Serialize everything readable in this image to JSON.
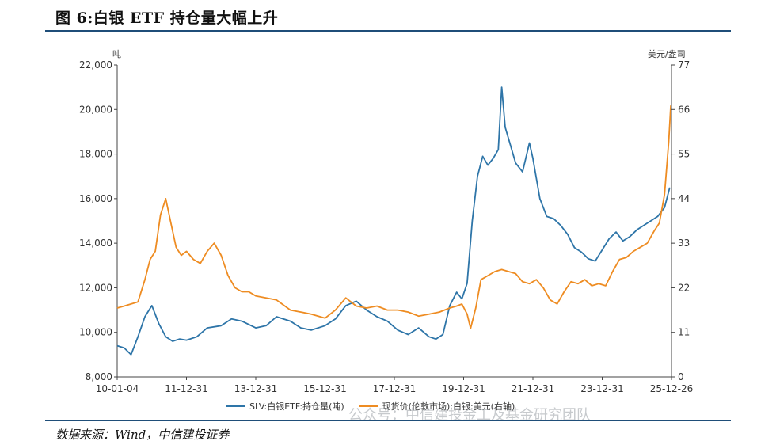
{
  "header": {
    "title": "图 6:白银 ETF 持仓量大幅上升"
  },
  "footer": {
    "source": "数据来源：Wind，中信建投证券"
  },
  "watermark": {
    "text": "公众号：中信建投金工及基金研究团队"
  },
  "chart_data": {
    "type": "line",
    "title": "图 6:白银 ETF 持仓量大幅上升",
    "ylabel_left": "吨",
    "ylabel_right": "美元/盎司",
    "ylim_left": [
      8000,
      22000
    ],
    "ylim_right": [
      0,
      77
    ],
    "yticks_left": [
      "22,000",
      "20,000",
      "18,000",
      "16,000",
      "14,000",
      "12,000",
      "10,000",
      "8,000"
    ],
    "yticks_right": [
      "77",
      "66",
      "55",
      "44",
      "33",
      "22",
      "11",
      "0"
    ],
    "xtick_labels": [
      "10-01-04",
      "11-12-31",
      "13-12-31",
      "15-12-31",
      "17-12-31",
      "19-12-31",
      "21-12-31",
      "23-12-31",
      "25-12-26"
    ],
    "xlim": [
      2010.0,
      2026.0
    ],
    "series": [
      {
        "name": "SLV:白银ETF:持仓量(吨)",
        "axis": "left",
        "color": "#2e75a8",
        "x": [
          2010.0,
          2010.2,
          2010.4,
          2010.6,
          2010.8,
          2011.0,
          2011.2,
          2011.4,
          2011.6,
          2011.8,
          2012.0,
          2012.3,
          2012.6,
          2013.0,
          2013.3,
          2013.6,
          2014.0,
          2014.3,
          2014.6,
          2015.0,
          2015.3,
          2015.6,
          2016.0,
          2016.3,
          2016.6,
          2016.9,
          2017.2,
          2017.5,
          2017.8,
          2018.1,
          2018.4,
          2018.7,
          2019.0,
          2019.2,
          2019.4,
          2019.6,
          2019.8,
          2019.95,
          2020.1,
          2020.25,
          2020.4,
          2020.55,
          2020.7,
          2020.85,
          2021.0,
          2021.1,
          2021.2,
          2021.35,
          2021.5,
          2021.7,
          2021.9,
          2022.0,
          2022.2,
          2022.4,
          2022.6,
          2022.8,
          2023.0,
          2023.2,
          2023.4,
          2023.6,
          2023.8,
          2024.0,
          2024.2,
          2024.4,
          2024.6,
          2024.8,
          2025.0,
          2025.2,
          2025.4,
          2025.6,
          2025.8,
          2025.95
        ],
        "values": [
          9400,
          9300,
          9000,
          9800,
          10700,
          11200,
          10400,
          9800,
          9600,
          9700,
          9650,
          9800,
          10200,
          10300,
          10600,
          10500,
          10200,
          10300,
          10700,
          10500,
          10200,
          10100,
          10300,
          10600,
          11200,
          11400,
          11000,
          10700,
          10500,
          10100,
          9900,
          10200,
          9800,
          9700,
          9900,
          11200,
          11800,
          11500,
          12200,
          15000,
          17000,
          17900,
          17500,
          17800,
          18200,
          21000,
          19200,
          18400,
          17600,
          17200,
          18500,
          17800,
          16000,
          15200,
          15100,
          14800,
          14400,
          13800,
          13600,
          13300,
          13200,
          13700,
          14200,
          14500,
          14100,
          14300,
          14600,
          14800,
          15000,
          15200,
          15600,
          16500
        ]
      },
      {
        "name": "现货价(伦敦市场):白银:美元(右轴)",
        "axis": "right",
        "color": "#ee8c22",
        "x": [
          2010.0,
          2010.2,
          2010.4,
          2010.6,
          2010.8,
          2010.95,
          2011.1,
          2011.25,
          2011.4,
          2011.55,
          2011.7,
          2011.85,
          2012.0,
          2012.2,
          2012.4,
          2012.6,
          2012.8,
          2013.0,
          2013.2,
          2013.4,
          2013.6,
          2013.8,
          2014.0,
          2014.3,
          2014.6,
          2015.0,
          2015.3,
          2015.6,
          2016.0,
          2016.3,
          2016.6,
          2016.9,
          2017.2,
          2017.5,
          2017.8,
          2018.1,
          2018.4,
          2018.7,
          2019.0,
          2019.3,
          2019.6,
          2019.8,
          2019.95,
          2020.1,
          2020.2,
          2020.35,
          2020.5,
          2020.7,
          2020.9,
          2021.1,
          2021.3,
          2021.5,
          2021.7,
          2021.9,
          2022.1,
          2022.3,
          2022.5,
          2022.7,
          2022.9,
          2023.1,
          2023.3,
          2023.5,
          2023.7,
          2023.9,
          2024.1,
          2024.3,
          2024.5,
          2024.7,
          2024.9,
          2025.1,
          2025.3,
          2025.5,
          2025.65,
          2025.8,
          2025.92,
          2025.98
        ],
        "values": [
          17,
          17.5,
          18,
          18.5,
          24,
          29,
          31,
          40,
          44,
          38,
          32,
          30,
          31,
          29,
          28,
          31,
          33,
          30,
          25,
          22,
          21,
          21,
          20,
          19.5,
          19,
          16.5,
          16,
          15.5,
          14.5,
          16.5,
          19.5,
          17.5,
          17,
          17.5,
          16.5,
          16.5,
          16,
          15,
          15.5,
          16,
          17,
          17.5,
          18,
          15.5,
          12,
          17,
          24,
          25,
          26,
          26.5,
          26,
          25.5,
          23.5,
          23,
          24,
          22,
          19,
          18,
          21,
          23.5,
          23,
          24,
          22.5,
          23,
          22.5,
          26,
          29,
          29.5,
          31,
          32,
          33,
          36,
          38,
          45,
          58,
          67
        ]
      }
    ]
  }
}
